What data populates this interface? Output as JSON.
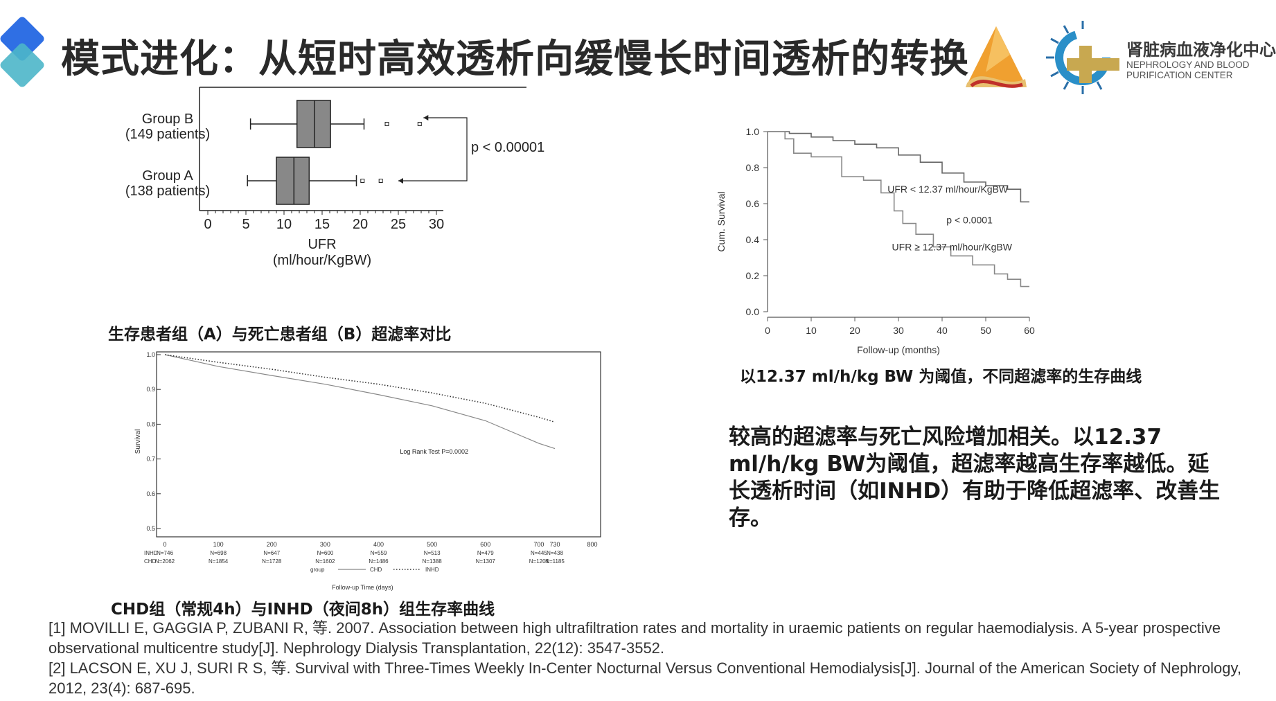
{
  "slide": {
    "title": "模式进化：从短时高效透析向缓慢长时间透析的转换",
    "org_name_cn": "肾脏病血液净化中心",
    "org_name_en_line1": "NEPHROLOGY AND BLOOD",
    "org_name_en_line2": "PURIFICATION CENTER",
    "colors": {
      "logo_blue": "#2f6fe4",
      "logo_teal": "#4db6c9",
      "logo_orange": "#f0a030",
      "logo_gold": "#c8a850",
      "box_fill": "#888888"
    }
  },
  "captions": {
    "boxplot": "生存患者组（A）与死亡患者组（B）超滤率对比",
    "km_ufr": "以12.37 ml/h/kg BW 为阈值，不同超滤率的生存曲线",
    "km_chd": "CHD组（常规4h）与INHD（夜间8h）组生存率曲线"
  },
  "summary": "较高的超滤率与死亡风险增加相关。以12.37 ml/h/kg BW为阈值，超滤率越高生存率越低。延长透析时间（如INHD）有助于降低超滤率、改善生存。",
  "references": [
    "[1] MOVILLI E, GAGGIA P, ZUBANI R, 等. 2007. Association between high ultrafiltration rates and mortality in uraemic patients on regular haemodialysis. A 5-year prospective observational multicentre study[J]. Nephrology Dialysis Transplantation, 22(12): 3547-3552.",
    "[2] LACSON E, XU J, SURI R S, 等. Survival with Three-Times Weekly In-Center Nocturnal Versus Conventional Hemodialysis[J]. Journal of the American Society of Nephrology, 2012, 23(4): 687-695."
  ],
  "chart_data": [
    {
      "type": "boxplot",
      "xlabel_line1": "UFR",
      "xlabel_line2": "(ml/hour/KgBW)",
      "xlim": [
        0,
        30
      ],
      "xticks": [
        "0",
        "5",
        "10",
        "15",
        "20",
        "25",
        "30"
      ],
      "annotation": "p < 0.00001",
      "groups": [
        {
          "label_line1": "Group B",
          "label_line2": "(149 patients)",
          "whisker_low": 5.6,
          "q1": 11.7,
          "median": 14.0,
          "q3": 16.1,
          "whisker_high": 20.5,
          "outliers": [
            23.5,
            27.8
          ]
        },
        {
          "label_line1": "Group A",
          "label_line2": "(138 patients)",
          "whisker_low": 5.2,
          "q1": 9.0,
          "median": 11.3,
          "q3": 13.3,
          "whisker_high": 19.5,
          "outliers": [
            20.3,
            22.7
          ]
        }
      ]
    },
    {
      "type": "line",
      "ylabel": "Cum. Survival",
      "xlabel": "Follow-up (months)",
      "xlim": [
        0,
        60
      ],
      "ylim": [
        0,
        1
      ],
      "xticks": [
        "0",
        "10",
        "20",
        "30",
        "40",
        "50",
        "60"
      ],
      "yticks": [
        "0.0",
        "0.2",
        "0.4",
        "0.6",
        "0.8",
        "1.0"
      ],
      "annotation": "p < 0.0001",
      "series": [
        {
          "name": "UFR < 12.37 ml/hour/KgBW",
          "points": [
            [
              0,
              1.0
            ],
            [
              5,
              0.99
            ],
            [
              10,
              0.97
            ],
            [
              15,
              0.95
            ],
            [
              20,
              0.93
            ],
            [
              25,
              0.91
            ],
            [
              30,
              0.87
            ],
            [
              35,
              0.83
            ],
            [
              40,
              0.77
            ],
            [
              45,
              0.72
            ],
            [
              50,
              0.7
            ],
            [
              55,
              0.68
            ],
            [
              58,
              0.61
            ],
            [
              60,
              0.61
            ]
          ]
        },
        {
          "name": "UFR ≥ 12.37 ml/hour/KgBW",
          "points": [
            [
              0,
              1.0
            ],
            [
              4,
              0.96
            ],
            [
              6,
              0.88
            ],
            [
              10,
              0.86
            ],
            [
              15,
              0.86
            ],
            [
              17,
              0.75
            ],
            [
              22,
              0.73
            ],
            [
              26,
              0.66
            ],
            [
              29,
              0.56
            ],
            [
              31,
              0.49
            ],
            [
              34,
              0.43
            ],
            [
              38,
              0.36
            ],
            [
              42,
              0.31
            ],
            [
              47,
              0.26
            ],
            [
              52,
              0.21
            ],
            [
              55,
              0.18
            ],
            [
              58,
              0.14
            ],
            [
              60,
              0.14
            ]
          ]
        }
      ]
    },
    {
      "type": "line",
      "ylabel": "Survival",
      "xlabel": "Follow-up Time (days)",
      "xlim": [
        0,
        800
      ],
      "ylim": [
        0.5,
        1.0
      ],
      "xticks": [
        "0",
        "100",
        "200",
        "300",
        "400",
        "500",
        "600",
        "700",
        "730",
        "800"
      ],
      "yticks": [
        "0.5",
        "0.6",
        "0.7",
        "0.8",
        "0.9",
        "1.0"
      ],
      "annotation": "Log Rank Test P=0.0002",
      "legend_title": "group",
      "series": [
        {
          "name": "CHD",
          "style": "solid",
          "points": [
            [
              0,
              1.0
            ],
            [
              100,
              0.966
            ],
            [
              200,
              0.94
            ],
            [
              300,
              0.915
            ],
            [
              400,
              0.885
            ],
            [
              500,
              0.853
            ],
            [
              600,
              0.81
            ],
            [
              700,
              0.745
            ],
            [
              730,
              0.73
            ]
          ]
        },
        {
          "name": "INHD",
          "style": "dotted",
          "points": [
            [
              0,
              1.0
            ],
            [
              100,
              0.978
            ],
            [
              200,
              0.958
            ],
            [
              300,
              0.935
            ],
            [
              400,
              0.915
            ],
            [
              500,
              0.89
            ],
            [
              600,
              0.86
            ],
            [
              700,
              0.82
            ],
            [
              730,
              0.806
            ]
          ]
        }
      ],
      "risk_table": [
        {
          "group": "INHD",
          "counts": [
            "N=746",
            "N=698",
            "N=647",
            "N=600",
            "N=559",
            "N=513",
            "N=479",
            "N=445",
            "N=438"
          ]
        },
        {
          "group": "CHD",
          "counts": [
            "N=2062",
            "N=1854",
            "N=1728",
            "N=1602",
            "N=1486",
            "N=1388",
            "N=1307",
            "N=1204",
            "N=1185"
          ]
        }
      ]
    }
  ]
}
